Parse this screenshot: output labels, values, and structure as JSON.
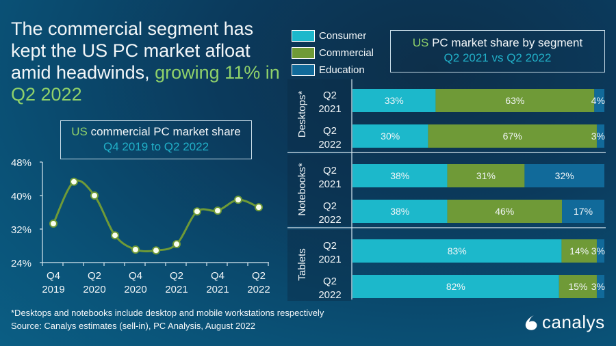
{
  "headline": {
    "text_white": "The commercial segment has kept the US PC market afloat amid headwinds, ",
    "text_green": "growing 11% in Q2 2022"
  },
  "colors": {
    "consumer": "#1cb8cb",
    "commercial": "#6f9a37",
    "education": "#116a9a",
    "accent_green": "#8fd16a",
    "accent_cyan": "#21b0c8",
    "line": "#6f9a37"
  },
  "footnote": {
    "line1": "*Desktops and notebooks include desktop and mobile workstations respectively",
    "line2": "Source: Canalys estimates (sell-in), PC Analysis, August 2022"
  },
  "logo": {
    "text": "canalys",
    "icon": "canalys-logo-icon"
  },
  "chart_data": [
    {
      "type": "line",
      "title_green": "US",
      "title": "commercial PC market share",
      "subtitle": "Q4 2019 to Q2 2022",
      "xlabel": "",
      "ylabel": "",
      "ylim": [
        24,
        48
      ],
      "yticks": [
        24,
        32,
        40,
        48
      ],
      "ytick_labels": [
        "24%",
        "32%",
        "40%",
        "48%"
      ],
      "x": [
        "Q4 2019",
        "Q1 2020",
        "Q2 2020",
        "Q3 2020",
        "Q4 2020",
        "Q1 2021",
        "Q2 2021",
        "Q3 2021",
        "Q4 2021",
        "Q1 2022",
        "Q2 2022"
      ],
      "xtick_labels": [
        {
          "index": 0,
          "line1": "Q4",
          "line2": "2019"
        },
        {
          "index": 2,
          "line1": "Q2",
          "line2": "2020"
        },
        {
          "index": 4,
          "line1": "Q4",
          "line2": "2020"
        },
        {
          "index": 6,
          "line1": "Q2",
          "line2": "2021"
        },
        {
          "index": 8,
          "line1": "Q4",
          "line2": "2021"
        },
        {
          "index": 10,
          "line1": "Q2",
          "line2": "2022"
        }
      ],
      "values": [
        33.3,
        43.3,
        40.0,
        30.5,
        27.1,
        26.9,
        28.4,
        36.2,
        36.4,
        39.0,
        37.2
      ],
      "grid": false,
      "smooth": true
    },
    {
      "type": "bar",
      "orientation": "horizontal-stacked",
      "title_green": "US",
      "title": "PC market share by segment",
      "subtitle": "Q2 2021 vs Q2 2022",
      "legend": [
        "Consumer",
        "Commercial",
        "Education"
      ],
      "legend_position": "top-left",
      "groups": [
        {
          "label": "Desktops*",
          "bars": [
            {
              "period_line1": "Q2",
              "period_line2": "2021",
              "values": [
                33,
                63,
                4
              ],
              "labels": [
                "33%",
                "63%",
                "4%"
              ]
            },
            {
              "period_line1": "Q2",
              "period_line2": "2022",
              "values": [
                30,
                67,
                3
              ],
              "labels": [
                "30%",
                "67%",
                "3%"
              ]
            }
          ]
        },
        {
          "label": "Notebooks*",
          "bars": [
            {
              "period_line1": "Q2",
              "period_line2": "2021",
              "values": [
                38,
                31,
                32
              ],
              "labels": [
                "38%",
                "31%",
                "32%"
              ]
            },
            {
              "period_line1": "Q2",
              "period_line2": "2022",
              "values": [
                38,
                46,
                17
              ],
              "labels": [
                "38%",
                "46%",
                "17%"
              ]
            }
          ]
        },
        {
          "label": "Tablets",
          "bars": [
            {
              "period_line1": "Q2",
              "period_line2": "2021",
              "values": [
                83,
                14,
                3
              ],
              "labels": [
                "83%",
                "14%",
                "3%"
              ]
            },
            {
              "period_line1": "Q2",
              "period_line2": "2022",
              "values": [
                82,
                15,
                3
              ],
              "labels": [
                "82%",
                "15%",
                "3%"
              ]
            }
          ]
        }
      ]
    }
  ]
}
